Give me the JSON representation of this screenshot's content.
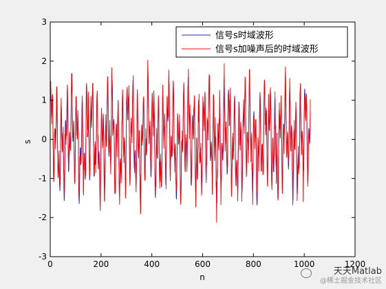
{
  "chart_data": {
    "type": "line",
    "title": "",
    "xlabel": "n",
    "ylabel": "s",
    "xlim": [
      0,
      1200
    ],
    "ylim": [
      -3,
      3
    ],
    "xticks": [
      0,
      200,
      400,
      600,
      800,
      1000,
      1200
    ],
    "yticks": [
      -3,
      -2,
      -1,
      0,
      1,
      2,
      3
    ],
    "grid": false,
    "legend_position": "top-right",
    "n_points": 1024,
    "series": [
      {
        "name": "信号s时域波形",
        "color": "#1f1fbf"
      },
      {
        "name": "信号s加噪声后的时域波形",
        "color": "#ff0000"
      }
    ],
    "noise_std": 0.35
  },
  "watermark": {
    "title": "天天Matlab",
    "subtitle": "@稀土掘金技术社区"
  }
}
